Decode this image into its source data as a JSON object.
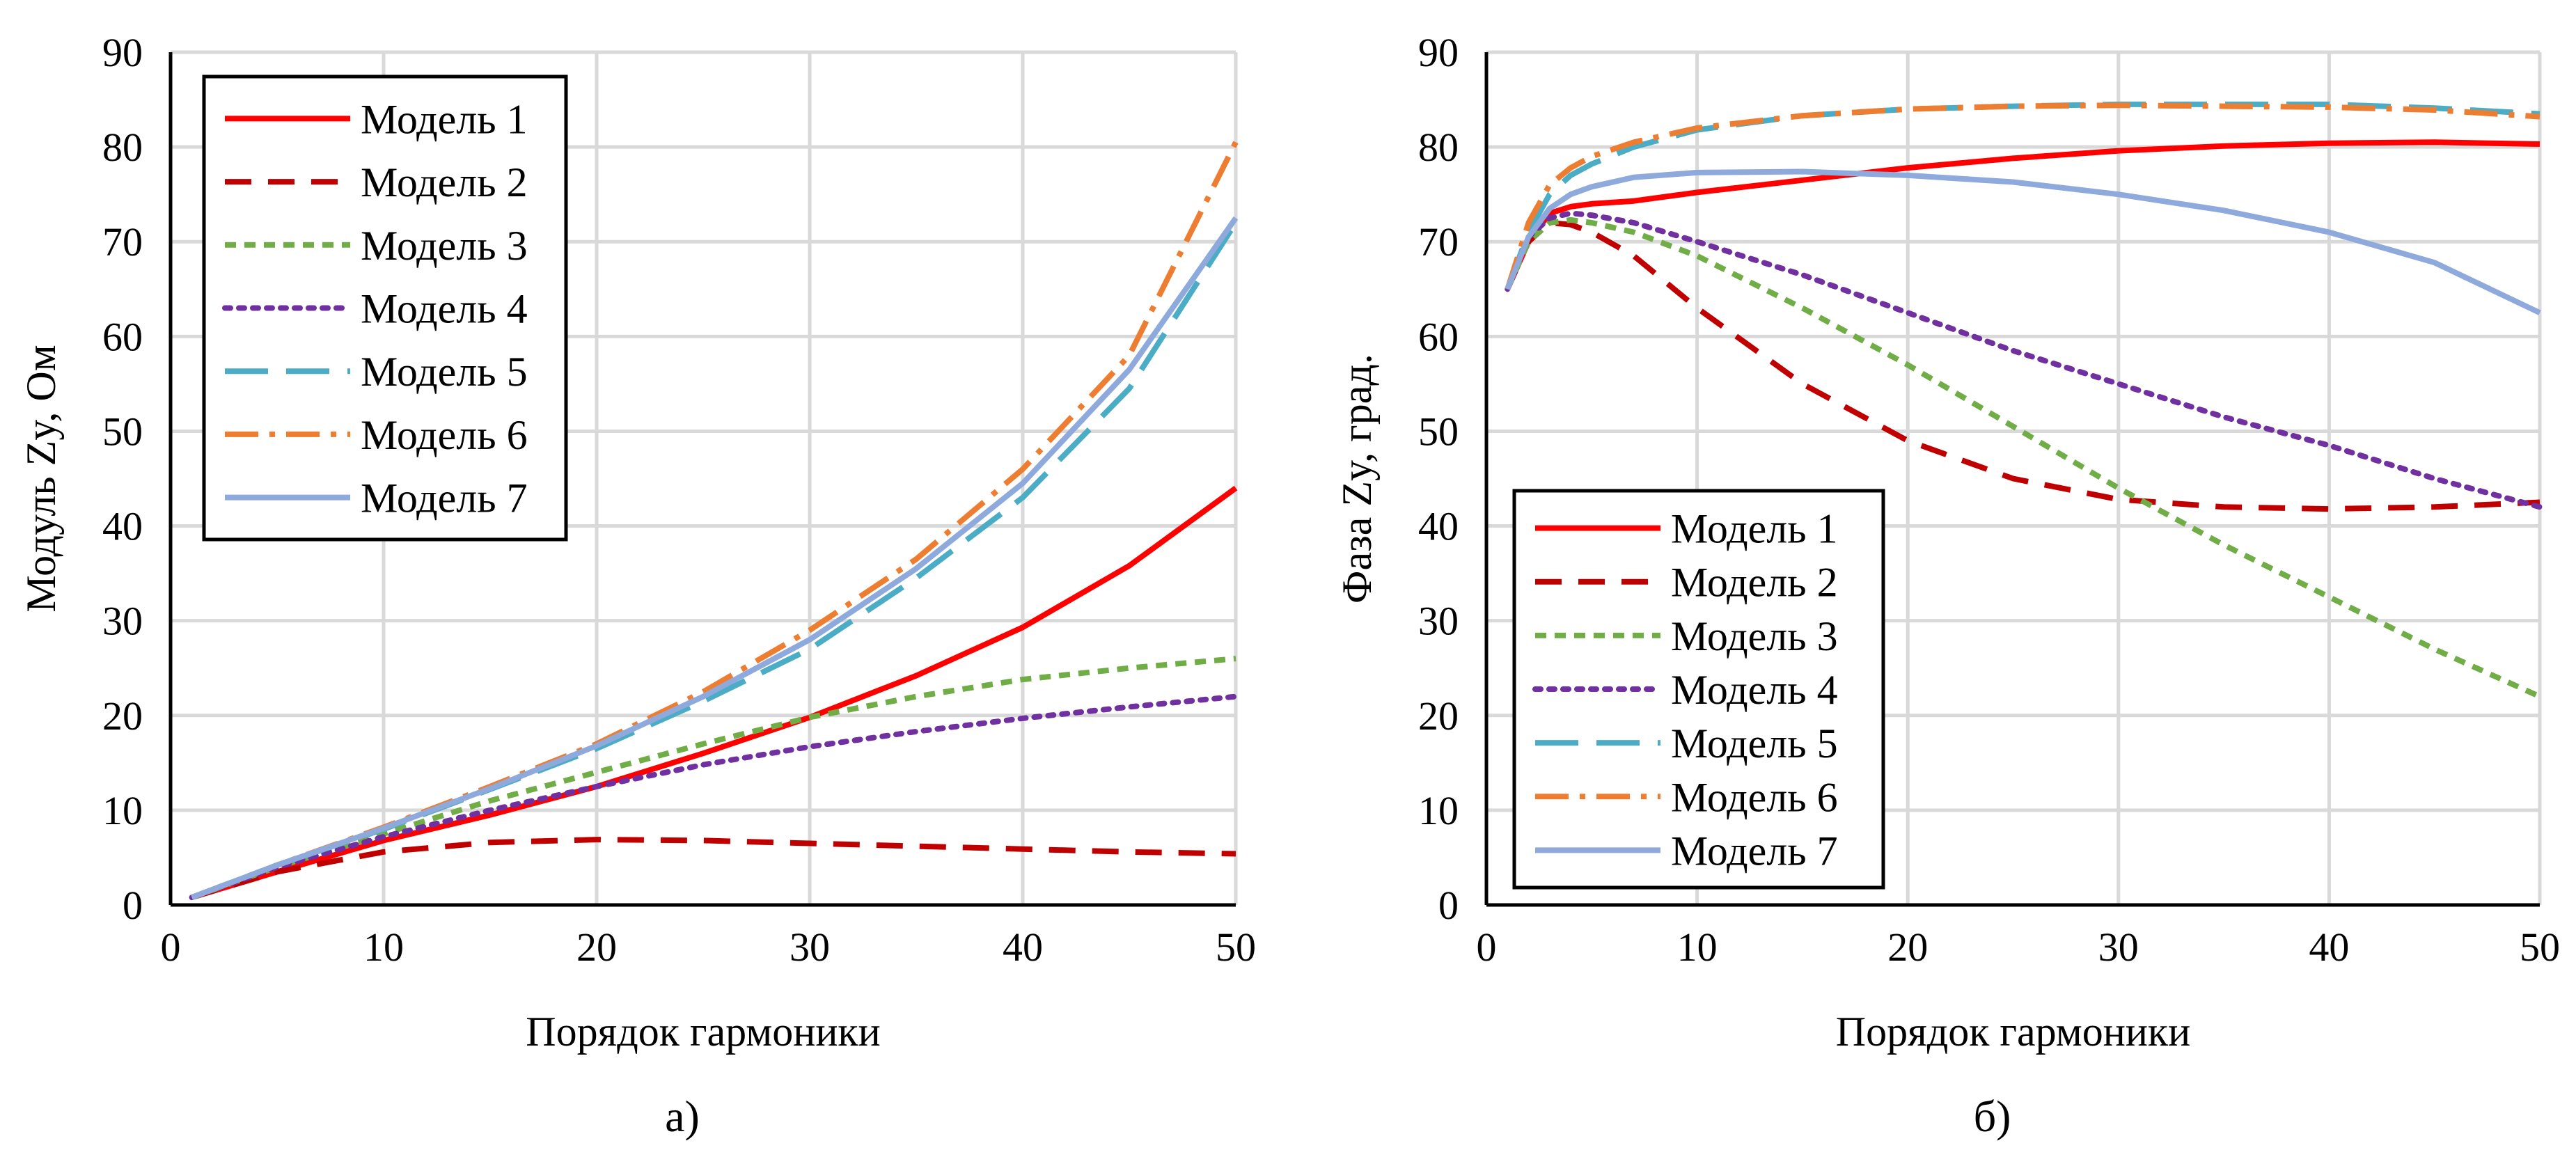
{
  "chart_data": [
    {
      "type": "line",
      "caption": "а)",
      "xlabel": "Порядок гармоники",
      "ylabel": "Модуль Zy, Ом",
      "xlim": [
        0,
        50
      ],
      "ylim": [
        0,
        90
      ],
      "xticks": [
        0,
        10,
        20,
        30,
        40,
        50
      ],
      "yticks": [
        0,
        10,
        20,
        30,
        40,
        50,
        60,
        70,
        80,
        90
      ],
      "grid": true,
      "legend_position": "top-left",
      "x": [
        1,
        5,
        10,
        15,
        20,
        25,
        30,
        35,
        40,
        45,
        50
      ],
      "series": [
        {
          "name": "Модель 1",
          "color": "#FF0000",
          "dash": "solid",
          "values": [
            0.8,
            3.5,
            6.8,
            9.5,
            12.5,
            16.0,
            19.8,
            24.2,
            29.3,
            35.8,
            44.0
          ]
        },
        {
          "name": "Модель 2",
          "color": "#C00000",
          "dash": "dash",
          "values": [
            0.8,
            3.5,
            5.6,
            6.6,
            6.9,
            6.8,
            6.5,
            6.2,
            5.9,
            5.6,
            5.4
          ]
        },
        {
          "name": "Модель 3",
          "color": "#70AD47",
          "dash": "shortdash",
          "values": [
            0.8,
            4.0,
            7.5,
            11.0,
            14.0,
            17.0,
            19.8,
            22.0,
            23.8,
            25.0,
            26.0
          ]
        },
        {
          "name": "Модель 4",
          "color": "#7030A0",
          "dash": "dot",
          "values": [
            0.8,
            4.0,
            7.2,
            10.0,
            12.5,
            14.8,
            16.7,
            18.3,
            19.7,
            20.9,
            22.0
          ]
        },
        {
          "name": "Модель 5",
          "color": "#4BACC6",
          "dash": "longdash",
          "values": [
            0.8,
            4.2,
            8.0,
            12.2,
            16.5,
            21.5,
            27.0,
            34.5,
            43.0,
            54.5,
            72.0
          ]
        },
        {
          "name": "Модель 6",
          "color": "#ED7D31",
          "dash": "dashdot",
          "values": [
            0.8,
            4.2,
            8.2,
            12.5,
            17.0,
            22.5,
            29.0,
            36.5,
            46.0,
            58.0,
            80.5
          ]
        },
        {
          "name": "Модель 7",
          "color": "#8EA9DB",
          "dash": "solid",
          "values": [
            0.8,
            4.2,
            8.1,
            12.3,
            16.8,
            22.0,
            28.0,
            35.5,
            44.5,
            56.5,
            72.5
          ]
        }
      ]
    },
    {
      "type": "line",
      "caption": "б)",
      "xlabel": "Порядок гармоники",
      "ylabel": "Фаза Zy, град.",
      "xlim": [
        0,
        50
      ],
      "ylim": [
        0,
        90
      ],
      "xticks": [
        0,
        10,
        20,
        30,
        40,
        50
      ],
      "yticks": [
        0,
        10,
        20,
        30,
        40,
        50,
        60,
        70,
        80,
        90
      ],
      "grid": true,
      "legend_position": "bottom-left",
      "x": [
        1,
        2,
        3,
        4,
        5,
        7,
        10,
        15,
        20,
        25,
        30,
        35,
        40,
        45,
        50
      ],
      "series": [
        {
          "name": "Модель 1",
          "color": "#FF0000",
          "dash": "solid",
          "values": [
            65,
            70,
            73,
            73.7,
            74,
            74.3,
            75.2,
            76.5,
            77.8,
            78.8,
            79.6,
            80.1,
            80.4,
            80.5,
            80.3
          ]
        },
        {
          "name": "Модель 2",
          "color": "#C00000",
          "dash": "dash",
          "values": [
            65,
            70,
            72,
            71.8,
            71,
            68.5,
            63,
            55,
            49,
            45,
            42.8,
            42,
            41.8,
            42,
            42.5
          ]
        },
        {
          "name": "Модель 3",
          "color": "#70AD47",
          "dash": "shortdash",
          "values": [
            65,
            70,
            72,
            72.3,
            72,
            71,
            68.5,
            63,
            57,
            50.5,
            44,
            38,
            32.5,
            27,
            22
          ]
        },
        {
          "name": "Модель 4",
          "color": "#7030A0",
          "dash": "dot",
          "values": [
            65,
            70.5,
            72.5,
            73,
            72.8,
            72,
            70,
            66.5,
            62.5,
            58.5,
            55,
            51.5,
            48.5,
            45,
            42
          ]
        },
        {
          "name": "Модель 5",
          "color": "#4BACC6",
          "dash": "longdash",
          "values": [
            65,
            71,
            75,
            77,
            78.2,
            80,
            81.8,
            83.3,
            84,
            84.3,
            84.5,
            84.5,
            84.5,
            84.1,
            83.5
          ]
        },
        {
          "name": "Модель 6",
          "color": "#ED7D31",
          "dash": "dashdot",
          "values": [
            65,
            72,
            76,
            77.8,
            79,
            80.5,
            82,
            83.3,
            84,
            84.3,
            84.4,
            84.3,
            84.2,
            83.9,
            83.2
          ]
        },
        {
          "name": "Модель 7",
          "color": "#8EA9DB",
          "dash": "solid",
          "values": [
            65,
            70.5,
            73.5,
            75,
            75.8,
            76.8,
            77.3,
            77.4,
            77,
            76.3,
            75,
            73.3,
            71,
            67.8,
            62.5
          ]
        }
      ]
    }
  ]
}
